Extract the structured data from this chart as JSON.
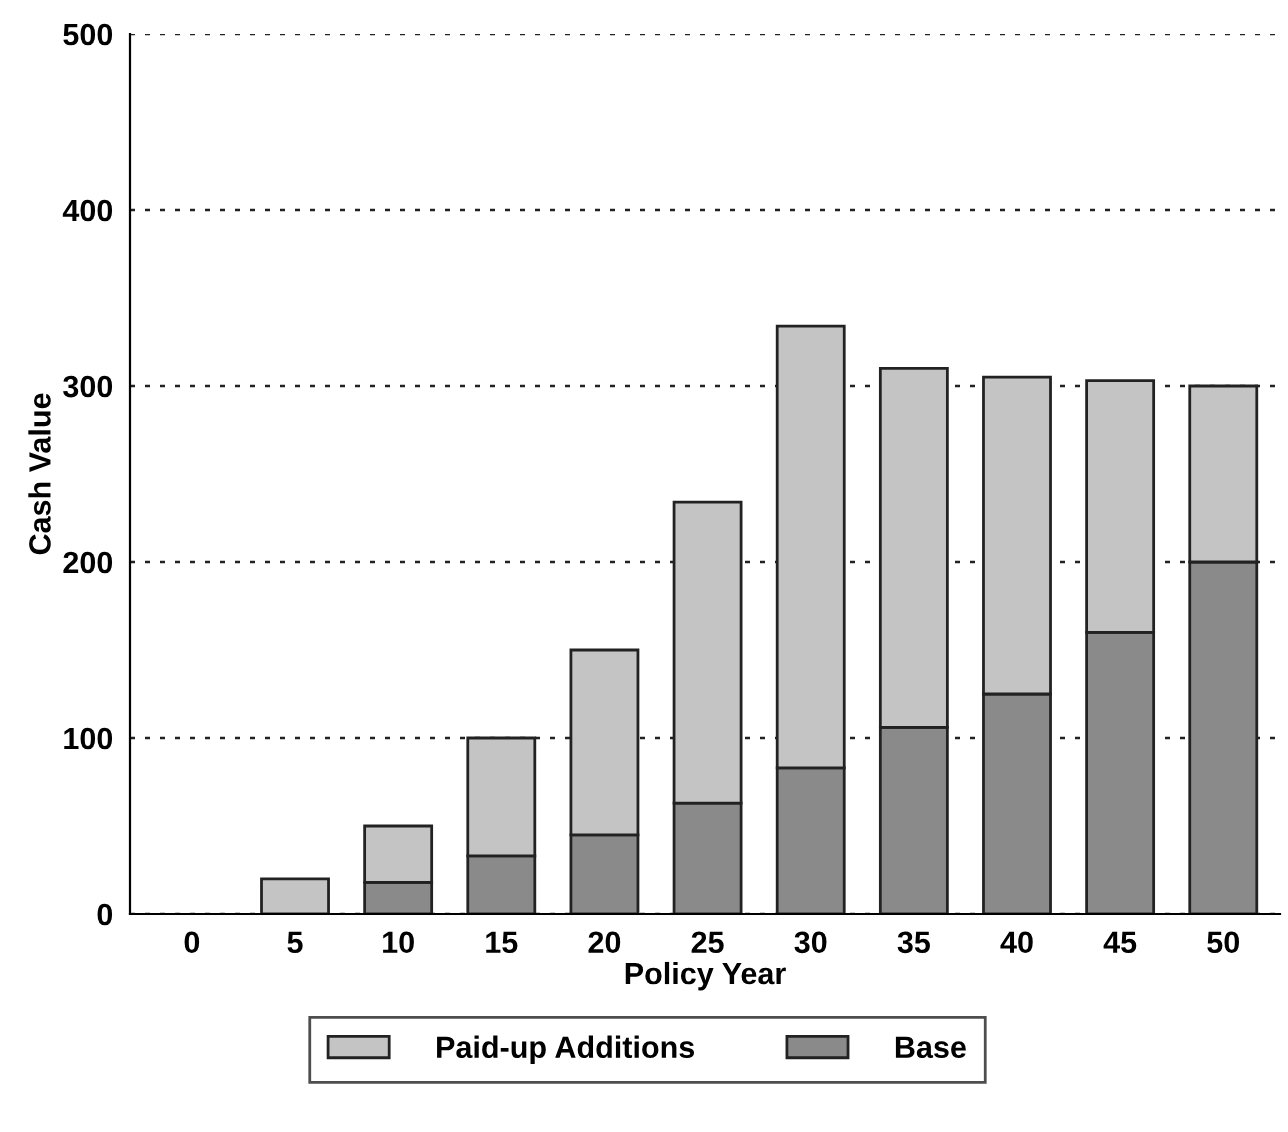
{
  "chart_data": {
    "type": "bar",
    "stacked": true,
    "xlabel": "Policy Year",
    "ylabel": "Cash Value",
    "categories": [
      "0",
      "5",
      "10",
      "15",
      "20",
      "25",
      "30",
      "35",
      "40",
      "45",
      "50"
    ],
    "series": [
      {
        "name": "Base",
        "color": "#8a8a8a",
        "values": [
          0,
          0,
          18,
          33,
          45,
          63,
          83,
          106,
          125,
          160,
          200
        ]
      },
      {
        "name": "Paid-up Additions",
        "color": "#c4c4c4",
        "values": [
          0,
          20,
          32,
          67,
          105,
          171,
          251,
          204,
          180,
          143,
          100
        ]
      }
    ],
    "ylim": [
      0,
      500
    ],
    "yticks": [
      0,
      100,
      200,
      300,
      400,
      500
    ],
    "grid": "y",
    "legend": "bottom"
  }
}
